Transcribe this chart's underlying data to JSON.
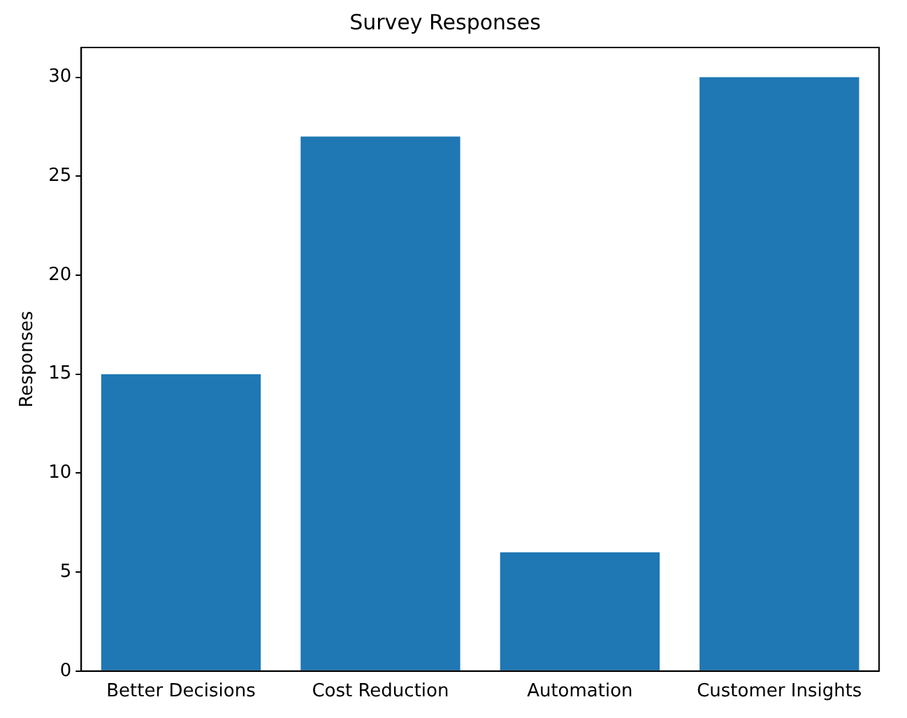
{
  "chart_data": {
    "type": "bar",
    "title": "Survey Responses",
    "ylabel": "Responses",
    "categories": [
      "Better Decisions",
      "Cost Reduction",
      "Automation",
      "Customer Insights"
    ],
    "values": [
      15,
      27,
      6,
      30
    ],
    "color": "#1f77b4",
    "ylim": [
      0,
      31.5
    ],
    "yticks": [
      0,
      5,
      10,
      15,
      20,
      25,
      30
    ],
    "grid": false,
    "legend": false
  }
}
